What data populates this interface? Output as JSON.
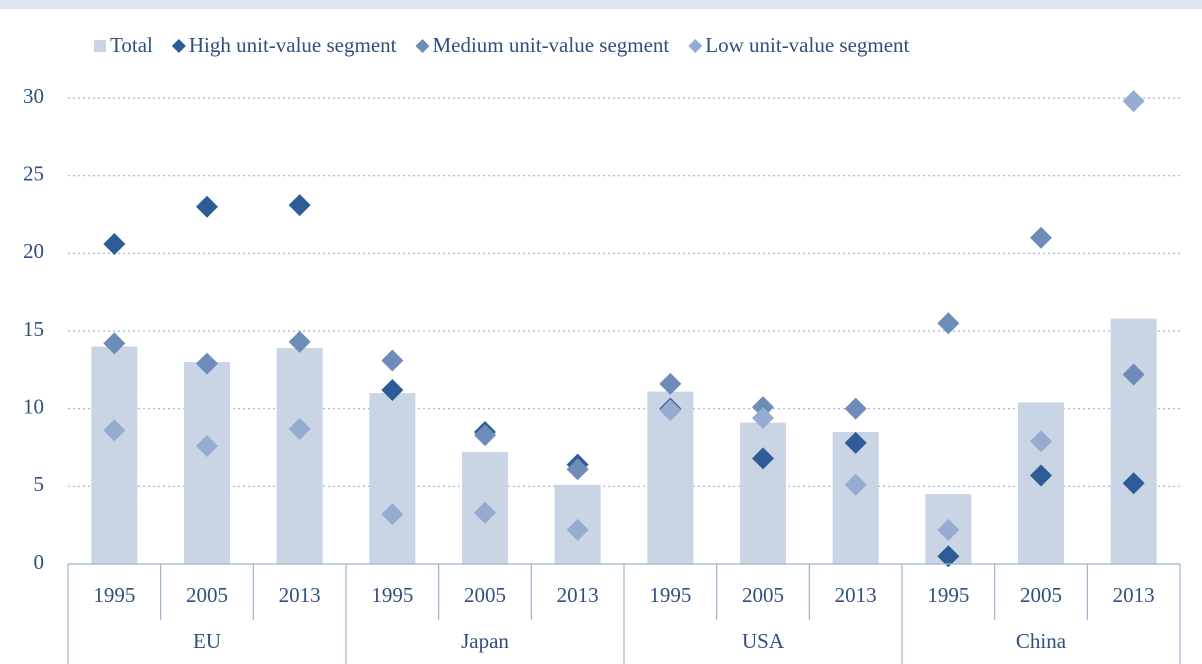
{
  "chart_data": {
    "type": "bar-diamond",
    "groups": [
      "EU",
      "Japan",
      "USA",
      "China"
    ],
    "categories": [
      "1995",
      "2005",
      "2013",
      "1995",
      "2005",
      "2013",
      "1995",
      "2005",
      "2013",
      "1995",
      "2005",
      "2013"
    ],
    "series": [
      {
        "name": "Total",
        "kind": "bar",
        "color": "#c9d4e4",
        "values": [
          14.0,
          13.0,
          13.9,
          11.0,
          7.2,
          5.1,
          11.1,
          9.1,
          8.5,
          4.5,
          10.4,
          15.8
        ]
      },
      {
        "name": "High unit-value segment",
        "kind": "diamond",
        "color": "#2e5c96",
        "values": [
          20.6,
          23.0,
          23.1,
          11.2,
          8.5,
          6.4,
          10.0,
          6.8,
          7.8,
          0.5,
          5.7,
          5.2
        ]
      },
      {
        "name": "Medium unit-value segment",
        "kind": "diamond",
        "color": "#6d8cb8",
        "values": [
          14.2,
          12.9,
          14.3,
          13.1,
          8.3,
          6.1,
          11.6,
          10.1,
          10.0,
          15.5,
          21.0,
          12.2
        ]
      },
      {
        "name": "Low unit-value segment",
        "kind": "diamond",
        "color": "#95acd0",
        "values": [
          8.6,
          7.6,
          8.7,
          3.2,
          3.3,
          2.2,
          9.9,
          9.4,
          5.1,
          2.2,
          7.9,
          29.8
        ]
      }
    ],
    "ylim": [
      0,
      30
    ],
    "yticks": [
      0,
      5,
      10,
      15,
      20,
      25,
      30
    ],
    "grid": true,
    "legend": "top"
  }
}
